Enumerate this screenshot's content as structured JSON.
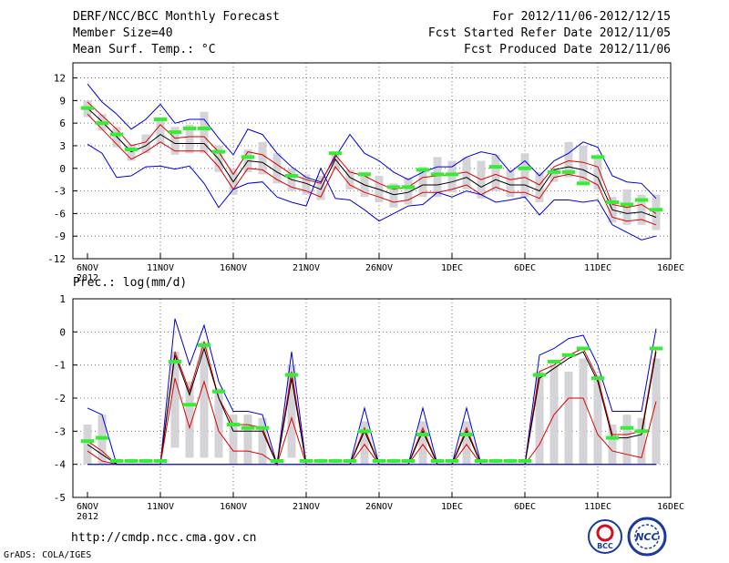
{
  "header": {
    "title": "DERF/NCC/BCC Monthly Forecast",
    "member_size": "Member Size=40",
    "variable": "Mean Surf. Temp.: °C",
    "period": "For 2012/11/06-2012/12/15",
    "started": "Fcst Started Refer Date 2012/11/05",
    "produced": "Fcst Produced Date 2012/11/06"
  },
  "footer": {
    "url": "http://cmdp.ncc.cma.gov.cn",
    "grads": "GrADS: COLA/IGES",
    "logo_bcc": "BCC",
    "logo_ncc": "NCC"
  },
  "colors": {
    "envelope": "#0000dd",
    "inner": "#dd0000",
    "mean": "#000000",
    "box": "#d4d4d8",
    "marker": "#33ee33"
  },
  "chart_data": [
    {
      "type": "line",
      "title": "Mean Surf. Temp.: °C",
      "xlabel": "",
      "ylabel": "",
      "x_tick_labels": [
        "6NOV",
        "11NOV",
        "16NOV",
        "21NOV",
        "26NOV",
        "1DEC",
        "6DEC",
        "11DEC",
        "16DEC"
      ],
      "x_sub_label": "2012",
      "days": 40,
      "ylim": [
        -12,
        14
      ],
      "yticks": [
        -12,
        -9,
        -6,
        -3,
        0,
        3,
        6,
        9,
        12
      ],
      "series": [
        {
          "name": "max",
          "values": [
            11.2,
            8.8,
            7.2,
            5.2,
            6.5,
            8.5,
            6.0,
            6.5,
            6.5,
            4.0,
            1.8,
            5.2,
            4.5,
            2.0,
            0.2,
            -1.2,
            -1.8,
            1.5,
            4.5,
            2.0,
            1.0,
            -0.5,
            -1.5,
            -0.5,
            0.2,
            0.2,
            1.5,
            2.2,
            1.8,
            -0.5,
            1.0,
            -1.0,
            1.0,
            2.0,
            3.5,
            2.8,
            -1.0,
            -1.8,
            -2.0,
            -4.0
          ]
        },
        {
          "name": "p_high",
          "values": [
            8.8,
            7.0,
            5.2,
            3.0,
            3.5,
            5.8,
            4.0,
            4.2,
            4.2,
            2.2,
            -0.8,
            2.2,
            1.8,
            0.5,
            -0.8,
            -1.5,
            -2.0,
            1.8,
            -0.5,
            -1.0,
            -2.0,
            -2.8,
            -2.5,
            -1.2,
            -1.0,
            -0.8,
            -0.5,
            -1.5,
            -0.8,
            -1.5,
            -1.2,
            -2.2,
            0.2,
            1.0,
            0.8,
            0.2,
            -4.8,
            -5.2,
            -4.8,
            -6.0
          ]
        },
        {
          "name": "mean",
          "values": [
            8.0,
            6.2,
            4.2,
            2.2,
            3.0,
            4.5,
            3.3,
            3.3,
            3.3,
            1.2,
            -1.8,
            1.0,
            0.8,
            -0.5,
            -1.5,
            -2.0,
            -2.8,
            1.2,
            -1.2,
            -2.2,
            -2.8,
            -3.5,
            -3.2,
            -2.2,
            -2.2,
            -1.8,
            -1.2,
            -2.5,
            -1.5,
            -2.2,
            -2.2,
            -3.0,
            -0.2,
            0.2,
            -0.2,
            -1.2,
            -5.5,
            -6.0,
            -5.8,
            -6.5
          ]
        },
        {
          "name": "p_low",
          "values": [
            7.2,
            5.2,
            3.2,
            1.2,
            2.2,
            3.5,
            2.3,
            2.3,
            2.3,
            0.2,
            -2.8,
            0.0,
            -0.2,
            -1.5,
            -2.5,
            -3.0,
            -3.8,
            0.2,
            -2.2,
            -3.2,
            -3.8,
            -4.5,
            -4.2,
            -3.2,
            -3.2,
            -2.8,
            -2.2,
            -3.5,
            -2.5,
            -3.2,
            -3.2,
            -4.0,
            -1.2,
            -0.8,
            -1.2,
            -2.2,
            -6.5,
            -7.0,
            -6.8,
            -7.5
          ]
        },
        {
          "name": "min",
          "values": [
            3.2,
            2.0,
            -1.2,
            -1.0,
            0.2,
            0.3,
            -0.1,
            0.3,
            -2.0,
            -5.2,
            -2.8,
            -2.0,
            -1.8,
            -3.8,
            -4.5,
            -5.0,
            0.0,
            -4.0,
            -4.2,
            -5.5,
            -7.0,
            -6.0,
            -5.0,
            -4.8,
            -3.2,
            -3.8,
            -3.0,
            -3.5,
            -4.5,
            -4.2,
            -3.8,
            -6.2,
            -4.2,
            -4.2,
            -4.5,
            -4.2,
            -7.5,
            -8.5,
            -9.5,
            -9.0
          ]
        }
      ],
      "box_low": [
        6.8,
        5.0,
        2.8,
        1.0,
        2.0,
        3.2,
        1.8,
        2.0,
        2.0,
        -0.5,
        -3.5,
        -0.5,
        -0.8,
        -2.0,
        -3.0,
        -3.5,
        -4.2,
        -0.2,
        -2.8,
        -3.8,
        -4.5,
        -5.2,
        -4.8,
        -3.8,
        -3.8,
        -3.2,
        -2.8,
        -4.0,
        -3.0,
        -3.8,
        -3.8,
        -4.5,
        -1.8,
        -1.2,
        -1.8,
        -2.8,
        -7.2,
        -7.5,
        -7.5,
        -8.2
      ],
      "box_high": [
        9.0,
        7.2,
        5.5,
        3.2,
        4.5,
        6.5,
        5.5,
        5.8,
        7.5,
        3.0,
        0.0,
        2.5,
        3.5,
        2.0,
        0.0,
        -0.8,
        -1.0,
        2.0,
        -0.2,
        -0.5,
        -1.0,
        -2.0,
        -1.2,
        0.2,
        1.5,
        1.0,
        1.5,
        1.0,
        1.8,
        -0.2,
        2.0,
        -0.5,
        0.0,
        3.5,
        3.0,
        1.5,
        -3.8,
        -2.8,
        -3.5,
        -3.5
      ],
      "markers": [
        8.0,
        6.0,
        4.5,
        2.5,
        null,
        6.5,
        4.8,
        5.3,
        5.3,
        2.2,
        null,
        1.5,
        null,
        null,
        -1.0,
        null,
        null,
        2.0,
        null,
        -0.8,
        null,
        -2.5,
        -2.5,
        -0.2,
        -0.8,
        -0.8,
        null,
        null,
        0.2,
        null,
        0.0,
        null,
        -0.5,
        -0.5,
        -2.0,
        1.5,
        -4.5,
        -4.8,
        -4.2,
        -5.5
      ]
    },
    {
      "type": "line",
      "title": "Prec.: log(mm/d)",
      "xlabel": "",
      "ylabel": "",
      "x_tick_labels": [
        "6NOV",
        "11NOV",
        "16NOV",
        "21NOV",
        "26NOV",
        "1DEC",
        "6DEC",
        "11DEC",
        "16DEC"
      ],
      "x_sub_label": "2012",
      "days": 40,
      "ylim": [
        -5,
        1
      ],
      "yticks": [
        -5,
        -4,
        -3,
        -2,
        -1,
        0,
        1
      ],
      "series": [
        {
          "name": "max",
          "values": [
            -2.3,
            -2.5,
            -4.0,
            -4.0,
            -4.0,
            -4.0,
            0.4,
            -1.0,
            0.2,
            -1.5,
            -2.4,
            -2.4,
            -2.5,
            -4.0,
            -0.6,
            -4.0,
            -4.0,
            -4.0,
            -4.0,
            -2.3,
            -4.0,
            -4.0,
            -4.0,
            -2.3,
            -4.0,
            -4.0,
            -2.3,
            -4.0,
            -4.0,
            -4.0,
            -4.0,
            -0.7,
            -0.5,
            -0.2,
            -0.1,
            -1.0,
            -2.4,
            -2.4,
            -2.4,
            0.1
          ]
        },
        {
          "name": "p_high",
          "values": [
            -3.3,
            -3.6,
            -4.0,
            -4.0,
            -4.0,
            -4.0,
            -0.6,
            -1.8,
            -0.3,
            -2.0,
            -2.8,
            -2.8,
            -2.9,
            -4.0,
            -1.2,
            -4.0,
            -4.0,
            -4.0,
            -4.0,
            -2.9,
            -4.0,
            -4.0,
            -4.0,
            -2.9,
            -4.0,
            -4.0,
            -2.9,
            -4.0,
            -4.0,
            -4.0,
            -4.0,
            -1.2,
            -1.0,
            -0.7,
            -0.5,
            -1.4,
            -3.1,
            -3.1,
            -3.0,
            -0.5
          ]
        },
        {
          "name": "mean",
          "values": [
            -3.4,
            -3.7,
            -4.0,
            -4.0,
            -4.0,
            -4.0,
            -0.7,
            -1.9,
            -0.5,
            -2.0,
            -3.0,
            -3.0,
            -3.0,
            -4.0,
            -1.4,
            -4.0,
            -4.0,
            -4.0,
            -4.0,
            -3.0,
            -4.0,
            -4.0,
            -4.0,
            -3.0,
            -4.0,
            -4.0,
            -3.0,
            -4.0,
            -4.0,
            -4.0,
            -4.0,
            -1.4,
            -1.1,
            -0.8,
            -0.6,
            -1.5,
            -3.2,
            -3.2,
            -3.1,
            -0.6
          ]
        },
        {
          "name": "p_low",
          "values": [
            -3.6,
            -3.9,
            -4.0,
            -4.0,
            -4.0,
            -4.0,
            -1.4,
            -2.9,
            -1.5,
            -3.0,
            -3.6,
            -3.6,
            -3.7,
            -4.0,
            -2.6,
            -4.0,
            -4.0,
            -4.0,
            -4.0,
            -3.4,
            -4.0,
            -4.0,
            -4.0,
            -3.4,
            -4.0,
            -4.0,
            -3.4,
            -4.0,
            -4.0,
            -4.0,
            -4.0,
            -3.4,
            -2.5,
            -2.0,
            -2.0,
            -3.1,
            -3.6,
            -3.7,
            -3.8,
            -2.1
          ]
        },
        {
          "name": "min",
          "values": [
            -4.0,
            -4.0,
            -4.0,
            -4.0,
            -4.0,
            -4.0,
            -4.0,
            -4.0,
            -4.0,
            -4.0,
            -4.0,
            -4.0,
            -4.0,
            -4.0,
            -4.0,
            -4.0,
            -4.0,
            -4.0,
            -4.0,
            -4.0,
            -4.0,
            -4.0,
            -4.0,
            -4.0,
            -4.0,
            -4.0,
            -4.0,
            -4.0,
            -4.0,
            -4.0,
            -4.0,
            -4.0,
            -4.0,
            -4.0,
            -4.0,
            -4.0,
            -4.0,
            -4.0,
            -4.0,
            -4.0
          ]
        },
        {
          "name": "min_line",
          "values": [
            -4.0,
            -4.0,
            -4.0,
            -4.0,
            -4.0,
            -4.0,
            -4.0,
            -4.0,
            -4.0,
            -4.0,
            -4.0,
            -4.0,
            -4.0,
            -4.0,
            -4.0,
            -4.0,
            -4.0,
            -4.0,
            -4.0,
            -4.0,
            -4.0,
            -4.0,
            -4.0,
            -4.0,
            -4.0,
            -4.0,
            -4.0,
            -4.0,
            -4.0,
            -4.0,
            -4.0,
            -4.0,
            -4.0,
            -4.0,
            -4.0,
            -4.0,
            -4.0,
            -4.0,
            -4.0,
            -4.0
          ]
        }
      ],
      "box_low": [
        -4.0,
        -4.0,
        -4.0,
        -4.0,
        -4.0,
        -4.0,
        -3.5,
        -3.8,
        -3.8,
        -3.8,
        -4.0,
        -4.0,
        -4.0,
        -4.0,
        -3.8,
        -4.0,
        -4.0,
        -4.0,
        -4.0,
        -4.0,
        -4.0,
        -4.0,
        -4.0,
        -4.0,
        -4.0,
        -4.0,
        -4.0,
        -4.0,
        -4.0,
        -4.0,
        -4.0,
        -4.0,
        -4.0,
        -4.0,
        -4.0,
        -4.0,
        -4.0,
        -4.0,
        -4.0,
        -4.0
      ],
      "box_high": [
        -2.8,
        -2.5,
        -4.0,
        -4.0,
        -4.0,
        -4.0,
        -0.6,
        -1.5,
        -0.3,
        -1.7,
        -2.5,
        -2.5,
        -2.6,
        -4.0,
        -1.0,
        -4.0,
        -4.0,
        -4.0,
        -4.0,
        -2.7,
        -4.0,
        -4.0,
        -4.0,
        -2.7,
        -4.0,
        -4.0,
        -2.7,
        -4.0,
        -4.0,
        -4.0,
        -4.0,
        -1.2,
        -1.0,
        -1.2,
        -0.8,
        -1.3,
        -2.8,
        -2.5,
        -2.6,
        -0.8
      ],
      "markers": [
        -3.3,
        -3.2,
        -3.9,
        -3.9,
        -3.9,
        -3.9,
        -0.9,
        -2.2,
        -0.4,
        -1.8,
        -2.8,
        -2.9,
        -2.9,
        -3.9,
        -1.3,
        -3.9,
        -3.9,
        -3.9,
        -3.9,
        -3.0,
        -3.9,
        -3.9,
        -3.9,
        -3.1,
        -3.9,
        -3.9,
        -3.1,
        -3.9,
        -3.9,
        -3.9,
        -3.9,
        -1.3,
        -0.9,
        -0.7,
        -0.5,
        -1.4,
        -3.2,
        -2.9,
        -3.0,
        -0.5
      ]
    }
  ]
}
